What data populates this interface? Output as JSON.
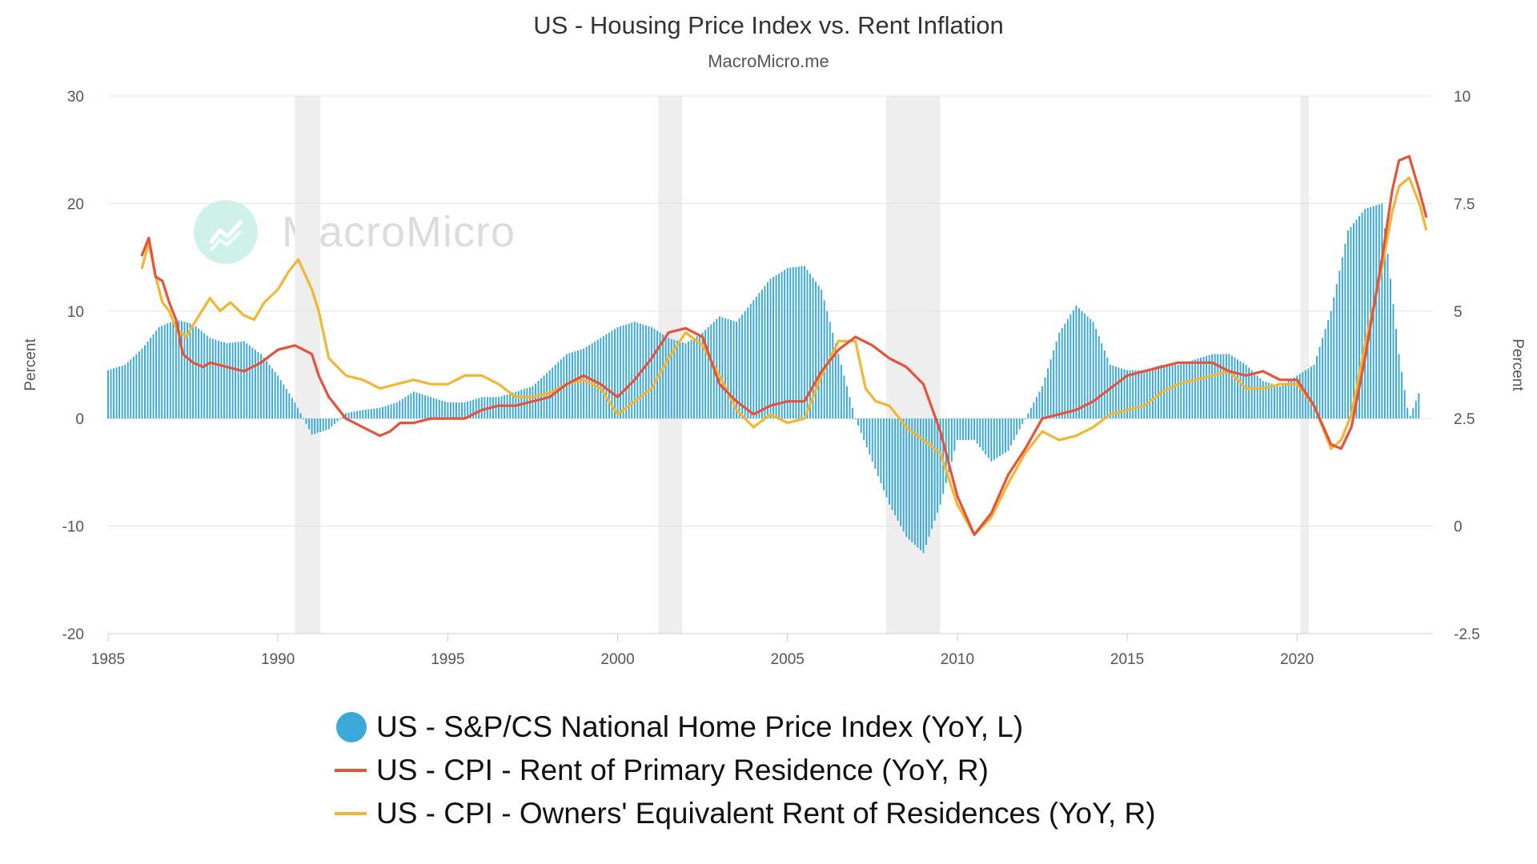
{
  "chart_data": {
    "type": "bar+line",
    "title": "US - Housing Price Index vs. Rent Inflation",
    "subtitle": "MacroMicro.me",
    "watermark": "MacroMicro",
    "x_axis": {
      "min": 1985,
      "max": 2024,
      "ticks": [
        "1985",
        "1990",
        "1995",
        "2000",
        "2005",
        "2010",
        "2015",
        "2020"
      ]
    },
    "y_left": {
      "label": "Percent",
      "min": -20,
      "max": 30,
      "ticks": [
        "30",
        "20",
        "10",
        "0",
        "-10",
        "-20"
      ]
    },
    "y_right": {
      "label": "Percent",
      "min": -2.5,
      "max": 10,
      "ticks": [
        "10",
        "7.5",
        "5",
        "2.5",
        "0",
        "-2.5"
      ]
    },
    "recessions": [
      [
        1990.5,
        1991.25
      ],
      [
        2001.2,
        2001.9
      ],
      [
        2007.9,
        2009.5
      ],
      [
        2020.1,
        2020.35
      ]
    ],
    "series": [
      {
        "name": "US - S&P/CS National Home Price Index (YoY, L)",
        "type": "bar",
        "axis": "left",
        "color": "#3aa9d8",
        "x": [
          1985.0,
          1985.5,
          1986.0,
          1986.5,
          1987.0,
          1987.5,
          1988.0,
          1988.5,
          1989.0,
          1989.5,
          1990.0,
          1990.5,
          1991.0,
          1991.5,
          1992.0,
          1992.5,
          1993.0,
          1993.5,
          1994.0,
          1994.5,
          1995.0,
          1995.5,
          1996.0,
          1996.5,
          1997.0,
          1997.5,
          1998.0,
          1998.5,
          1999.0,
          1999.5,
          2000.0,
          2000.5,
          2001.0,
          2001.5,
          2002.0,
          2002.5,
          2003.0,
          2003.5,
          2004.0,
          2004.5,
          2005.0,
          2005.5,
          2006.0,
          2006.5,
          2007.0,
          2007.5,
          2008.0,
          2008.5,
          2009.0,
          2009.5,
          2010.0,
          2010.5,
          2011.0,
          2011.5,
          2012.0,
          2012.5,
          2013.0,
          2013.5,
          2014.0,
          2014.5,
          2015.0,
          2015.5,
          2016.0,
          2016.5,
          2017.0,
          2017.5,
          2018.0,
          2018.5,
          2019.0,
          2019.5,
          2020.0,
          2020.5,
          2021.0,
          2021.5,
          2022.0,
          2022.5,
          2023.0,
          2023.3,
          2023.6
        ],
        "values": [
          4.5,
          5.0,
          6.5,
          8.5,
          9.2,
          8.8,
          7.5,
          7.0,
          7.2,
          6.0,
          4.0,
          1.5,
          -1.5,
          -1.0,
          0.5,
          0.8,
          1.0,
          1.5,
          2.5,
          2.0,
          1.5,
          1.5,
          2.0,
          2.0,
          2.5,
          3.0,
          4.5,
          6.0,
          6.5,
          7.5,
          8.5,
          9.0,
          8.5,
          7.5,
          7.0,
          8.0,
          9.5,
          9.0,
          11.0,
          13.0,
          14.0,
          14.2,
          12.0,
          6.0,
          0.0,
          -4.0,
          -8.0,
          -11.0,
          -12.5,
          -8.0,
          -2.0,
          -2.0,
          -4.0,
          -3.0,
          0.0,
          3.0,
          8.0,
          10.5,
          9.0,
          5.0,
          4.5,
          4.5,
          5.0,
          5.0,
          5.5,
          6.0,
          6.0,
          5.0,
          3.5,
          3.0,
          4.0,
          5.0,
          10.0,
          17.5,
          19.5,
          20.0,
          6.0,
          0.0,
          2.5
        ]
      },
      {
        "name": "US - CPI - Rent of Primary Residence (YoY, R)",
        "type": "line",
        "axis": "right",
        "color": "#e5533a",
        "x": [
          1986.0,
          1986.2,
          1986.4,
          1986.6,
          1986.8,
          1987.0,
          1987.2,
          1987.5,
          1987.8,
          1988.0,
          1988.5,
          1989.0,
          1989.5,
          1990.0,
          1990.5,
          1991.0,
          1991.2,
          1991.5,
          1992.0,
          1992.5,
          1993.0,
          1993.3,
          1993.6,
          1994.0,
          1994.5,
          1995.0,
          1995.5,
          1996.0,
          1996.5,
          1997.0,
          1997.5,
          1998.0,
          1998.5,
          1999.0,
          1999.5,
          2000.0,
          2000.5,
          2001.0,
          2001.5,
          2002.0,
          2002.5,
          2003.0,
          2003.5,
          2004.0,
          2004.5,
          2005.0,
          2005.5,
          2006.0,
          2006.5,
          2007.0,
          2007.5,
          2008.0,
          2008.5,
          2009.0,
          2009.5,
          2010.0,
          2010.5,
          2011.0,
          2011.5,
          2012.0,
          2012.5,
          2013.0,
          2013.5,
          2014.0,
          2014.5,
          2015.0,
          2015.5,
          2016.0,
          2016.5,
          2017.0,
          2017.5,
          2018.0,
          2018.5,
          2019.0,
          2019.5,
          2020.0,
          2020.5,
          2021.0,
          2021.3,
          2021.6,
          2022.0,
          2022.5,
          2022.8,
          2023.0,
          2023.3,
          2023.6,
          2023.8
        ],
        "values": [
          6.3,
          6.7,
          5.8,
          5.7,
          5.2,
          4.8,
          4.0,
          3.8,
          3.7,
          3.8,
          3.7,
          3.6,
          3.8,
          4.1,
          4.2,
          4.0,
          3.5,
          3.0,
          2.5,
          2.3,
          2.1,
          2.2,
          2.4,
          2.4,
          2.5,
          2.5,
          2.5,
          2.7,
          2.8,
          2.8,
          2.9,
          3.0,
          3.3,
          3.5,
          3.3,
          3.0,
          3.4,
          3.9,
          4.5,
          4.6,
          4.4,
          3.3,
          2.9,
          2.6,
          2.8,
          2.9,
          2.9,
          3.6,
          4.1,
          4.4,
          4.2,
          3.9,
          3.7,
          3.3,
          2.2,
          0.7,
          -0.2,
          0.3,
          1.2,
          1.8,
          2.5,
          2.6,
          2.7,
          2.9,
          3.2,
          3.5,
          3.6,
          3.7,
          3.8,
          3.8,
          3.8,
          3.6,
          3.5,
          3.6,
          3.4,
          3.4,
          2.8,
          1.9,
          1.8,
          2.3,
          3.9,
          6.2,
          7.8,
          8.5,
          8.6,
          7.8,
          7.2
        ]
      },
      {
        "name": "US - CPI - Owners' Equivalent Rent of Residences (YoY, R)",
        "type": "line",
        "axis": "right",
        "color": "#f3b534",
        "x": [
          1986.0,
          1986.2,
          1986.4,
          1986.6,
          1986.8,
          1987.0,
          1987.3,
          1987.6,
          1988.0,
          1988.3,
          1988.6,
          1989.0,
          1989.3,
          1989.6,
          1990.0,
          1990.3,
          1990.6,
          1991.0,
          1991.2,
          1991.5,
          1992.0,
          1992.5,
          1993.0,
          1993.5,
          1994.0,
          1994.5,
          1995.0,
          1995.5,
          1996.0,
          1996.5,
          1997.0,
          1997.5,
          1998.0,
          1998.5,
          1999.0,
          1999.5,
          2000.0,
          2000.5,
          2001.0,
          2001.5,
          2002.0,
          2002.5,
          2003.0,
          2003.5,
          2004.0,
          2004.5,
          2005.0,
          2005.5,
          2006.0,
          2006.5,
          2007.0,
          2007.3,
          2007.6,
          2008.0,
          2008.5,
          2009.0,
          2009.5,
          2010.0,
          2010.5,
          2011.0,
          2011.5,
          2012.0,
          2012.5,
          2013.0,
          2013.5,
          2014.0,
          2014.5,
          2015.0,
          2015.5,
          2016.0,
          2016.5,
          2017.0,
          2017.5,
          2018.0,
          2018.5,
          2019.0,
          2019.5,
          2020.0,
          2020.5,
          2021.0,
          2021.3,
          2021.6,
          2022.0,
          2022.5,
          2022.8,
          2023.0,
          2023.3,
          2023.6,
          2023.8
        ],
        "values": [
          6.0,
          6.6,
          5.8,
          5.2,
          5.0,
          4.6,
          4.4,
          4.8,
          5.3,
          5.0,
          5.2,
          4.9,
          4.8,
          5.2,
          5.5,
          5.9,
          6.2,
          5.5,
          5.0,
          3.9,
          3.5,
          3.4,
          3.2,
          3.3,
          3.4,
          3.3,
          3.3,
          3.5,
          3.5,
          3.3,
          3.0,
          3.0,
          3.1,
          3.3,
          3.4,
          3.2,
          2.6,
          2.9,
          3.2,
          3.9,
          4.5,
          4.2,
          3.5,
          2.7,
          2.3,
          2.6,
          2.4,
          2.5,
          3.5,
          4.3,
          4.3,
          3.2,
          2.9,
          2.8,
          2.3,
          2.0,
          1.7,
          0.5,
          -0.2,
          0.2,
          1.0,
          1.7,
          2.2,
          2.0,
          2.1,
          2.3,
          2.6,
          2.7,
          2.8,
          3.1,
          3.3,
          3.4,
          3.5,
          3.6,
          3.2,
          3.2,
          3.3,
          3.3,
          2.8,
          1.8,
          2.0,
          2.6,
          4.2,
          6.0,
          7.3,
          7.9,
          8.1,
          7.5,
          6.9
        ]
      }
    ]
  }
}
